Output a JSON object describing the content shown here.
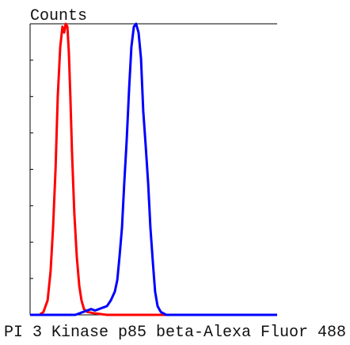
{
  "chart_data": {
    "type": "line",
    "y_label": "Counts",
    "x_label": "PI 3 Kinase p85 beta-Alexa Fluor 488",
    "xlim": [
      0,
      100
    ],
    "ylim": [
      0,
      100
    ],
    "yticks": [
      0,
      12.5,
      25,
      37.5,
      50,
      62.5,
      75,
      87.5,
      100
    ],
    "series": [
      {
        "color": "#ff0000",
        "x": [
          0,
          3.8,
          5.4,
          7.1,
          8.3,
          9.3,
          10.3,
          11.2,
          12.2,
          13.1,
          13.8,
          14.4,
          15.1,
          15.7,
          16.3,
          17.0,
          17.9,
          18.9,
          19.9,
          20.8,
          21.8,
          23.1,
          26.3,
          31.1,
          100
        ],
        "values": [
          0,
          0,
          1,
          5,
          15,
          30,
          50,
          75,
          92,
          99,
          97,
          100,
          99,
          90,
          75,
          55,
          35,
          20,
          10,
          5,
          2,
          1,
          0.5,
          0,
          0
        ]
      },
      {
        "color": "#0000ff",
        "x": [
          0,
          18.3,
          19.9,
          21.5,
          23.1,
          24.7,
          26.3,
          27.9,
          29.5,
          31.1,
          32.7,
          34.3,
          35.3,
          36.2,
          37.2,
          38.1,
          39.1,
          40.1,
          41.0,
          42.0,
          42.9,
          43.9,
          44.9,
          45.8,
          46.8,
          47.8,
          48.7,
          49.7,
          50.6,
          51.6,
          52.9,
          55.1,
          100
        ],
        "values": [
          0,
          0,
          0.5,
          1,
          1.5,
          2,
          1.5,
          2,
          2.5,
          3,
          5,
          8,
          12,
          20,
          30,
          45,
          60,
          78,
          92,
          99,
          100,
          97,
          88,
          70,
          58,
          45,
          30,
          18,
          8,
          3,
          1,
          0,
          0
        ]
      }
    ]
  }
}
